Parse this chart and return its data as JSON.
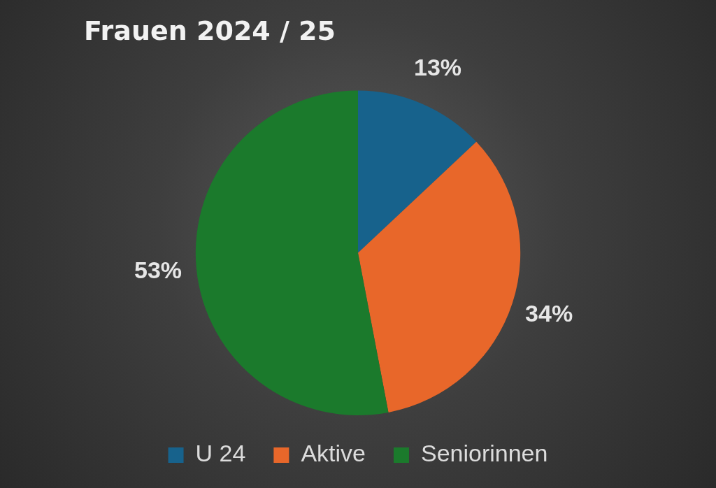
{
  "chart_data": {
    "type": "pie",
    "title": "Frauen 2024 / 25",
    "categories": [
      "U 24",
      "Aktive",
      "Seniorinnen"
    ],
    "values": [
      13,
      34,
      53
    ],
    "colors": [
      "#17628c",
      "#e8672a",
      "#1b7a2c"
    ],
    "value_labels": [
      "13%",
      "34%",
      "53%"
    ],
    "legend": "bottom"
  }
}
